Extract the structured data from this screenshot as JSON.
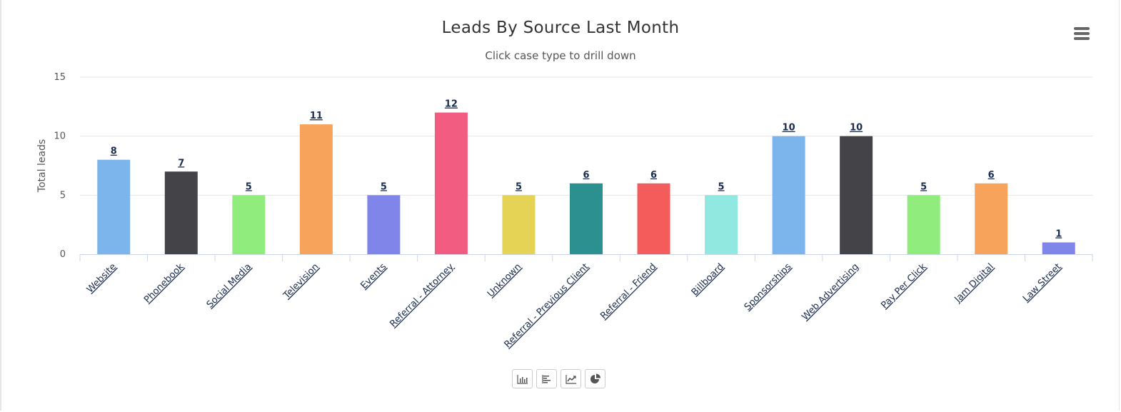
{
  "chart_data": {
    "type": "bar",
    "title": "Leads By Source Last Month",
    "subtitle": "Click case type to drill down",
    "xlabel": "",
    "ylabel": "Total leads",
    "ylim": [
      0,
      15
    ],
    "yticks": [
      0,
      5,
      10,
      15
    ],
    "grid": true,
    "categories": [
      "Website",
      "Phonebook",
      "Social Media",
      "Television",
      "Events",
      "Referral - Attorney",
      "Unknown",
      "Referral - Previous Client",
      "Referral - Friend",
      "Billboard",
      "Sponsorships",
      "Web Advertising",
      "Pay Per Click",
      "Jam Digital",
      "Law Street"
    ],
    "values": [
      8,
      7,
      5,
      11,
      5,
      12,
      5,
      6,
      6,
      5,
      10,
      10,
      5,
      6,
      1
    ],
    "colors": [
      "#7cb5ec",
      "#434348",
      "#90ed7d",
      "#f7a35c",
      "#8085e9",
      "#f15c80",
      "#e4d354",
      "#2b908f",
      "#f45b5b",
      "#91e8e1",
      "#7cb5ec",
      "#434348",
      "#90ed7d",
      "#f7a35c",
      "#8085e9"
    ]
  },
  "menu": {
    "icon": "hamburger-menu-icon"
  },
  "toolbar": {
    "buttons": [
      {
        "name": "column-chart-button",
        "icon": "column-chart-icon"
      },
      {
        "name": "bar-chart-button",
        "icon": "bar-chart-icon"
      },
      {
        "name": "line-chart-button",
        "icon": "line-chart-icon"
      },
      {
        "name": "pie-chart-button",
        "icon": "pie-chart-icon"
      }
    ]
  },
  "colors": {
    "grid": "#e6e6e6",
    "axis": "#ccd6eb",
    "label": "#1b2d4f"
  }
}
